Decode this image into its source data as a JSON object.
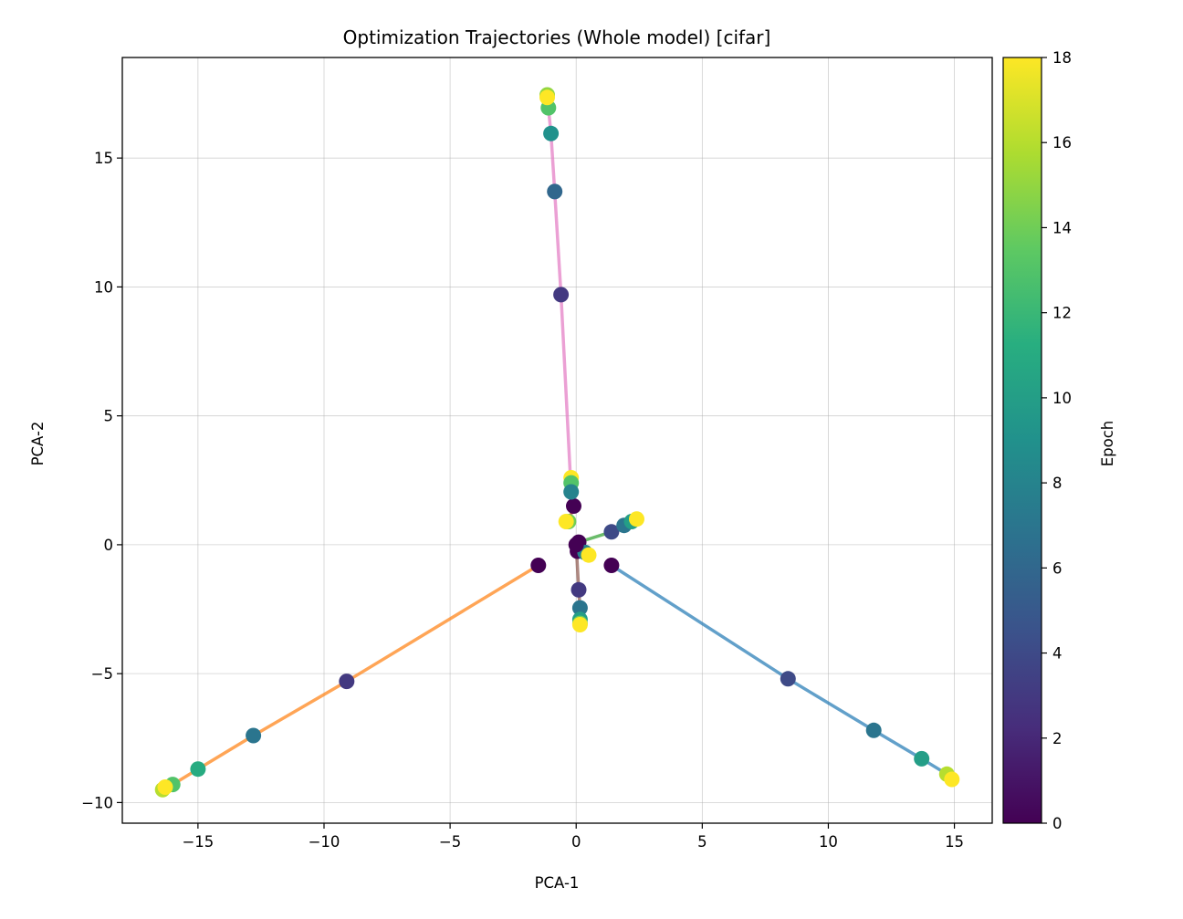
{
  "chart_data": {
    "type": "line",
    "title": "Optimization Trajectories (Whole model) [cifar]",
    "xlabel": "PCA-1",
    "ylabel": "PCA-2",
    "xlim": [
      -18,
      16.5
    ],
    "ylim": [
      -10.8,
      18.9
    ],
    "xticks": [
      -15,
      -10,
      -5,
      0,
      5,
      10,
      15
    ],
    "xtick_labels": [
      "−15",
      "−10",
      "−5",
      "0",
      "5",
      "10",
      "15"
    ],
    "yticks": [
      -10,
      -5,
      0,
      5,
      10,
      15
    ],
    "ytick_labels": [
      "−10",
      "−5",
      "0",
      "5",
      "10",
      "15"
    ],
    "grid": true,
    "colorbar": {
      "label": "Epoch",
      "min": 0,
      "max": 18,
      "ticks": [
        0,
        2,
        4,
        6,
        8,
        10,
        12,
        14,
        16,
        18
      ],
      "tick_labels": [
        "0",
        "2",
        "4",
        "6",
        "8",
        "10",
        "12",
        "14",
        "16",
        "18"
      ],
      "colormap": "viridis"
    },
    "series": [
      {
        "name": "trajectory-blue",
        "color": "#1f77b4",
        "points": [
          [
            1.4,
            -0.8,
            0
          ],
          [
            8.4,
            -5.2,
            4
          ],
          [
            11.8,
            -7.2,
            7
          ],
          [
            13.7,
            -8.3,
            10
          ],
          [
            14.7,
            -8.9,
            16
          ],
          [
            14.9,
            -9.1,
            18
          ]
        ]
      },
      {
        "name": "trajectory-orange",
        "color": "#ff7f0e",
        "points": [
          [
            -1.5,
            -0.8,
            0
          ],
          [
            -9.1,
            -5.3,
            3
          ],
          [
            -12.8,
            -7.4,
            7
          ],
          [
            -15.0,
            -8.7,
            11
          ],
          [
            -16.0,
            -9.3,
            13
          ],
          [
            -16.4,
            -9.5,
            16
          ],
          [
            -16.3,
            -9.4,
            18
          ]
        ]
      },
      {
        "name": "trajectory-green",
        "color": "#2ca02c",
        "points": [
          [
            0.1,
            0.1,
            0
          ],
          [
            1.4,
            0.5,
            4
          ],
          [
            1.9,
            0.75,
            7
          ],
          [
            2.2,
            0.9,
            10
          ],
          [
            2.4,
            1.0,
            18
          ]
        ]
      },
      {
        "name": "trajectory-red",
        "color": "#d62728",
        "points": [
          [
            -0.1,
            1.5,
            0
          ],
          [
            -0.3,
            0.9,
            14
          ],
          [
            -0.4,
            0.9,
            18
          ]
        ]
      },
      {
        "name": "trajectory-purple",
        "color": "#9467bd",
        "points": [
          [
            0.05,
            -0.25,
            0
          ],
          [
            0.35,
            -0.3,
            8
          ],
          [
            0.5,
            -0.4,
            18
          ]
        ]
      },
      {
        "name": "trajectory-brown",
        "color": "#8c564b",
        "points": [
          [
            0.0,
            0.0,
            0
          ],
          [
            0.1,
            -1.75,
            3
          ],
          [
            0.15,
            -2.45,
            7
          ],
          [
            0.15,
            -2.9,
            10
          ],
          [
            0.15,
            -3.05,
            14
          ],
          [
            0.15,
            -3.1,
            18
          ]
        ]
      },
      {
        "name": "trajectory-pink",
        "color": "#e377c2",
        "points": [
          [
            -0.2,
            2.6,
            18
          ],
          [
            -0.2,
            2.4,
            13
          ],
          [
            -0.2,
            2.05,
            8
          ],
          [
            -0.6,
            9.7,
            3
          ],
          [
            -0.85,
            13.7,
            6
          ],
          [
            -1.0,
            15.95,
            9
          ],
          [
            -1.1,
            16.95,
            13
          ],
          [
            -1.15,
            17.45,
            15
          ],
          [
            -1.15,
            17.35,
            18
          ]
        ]
      }
    ]
  }
}
